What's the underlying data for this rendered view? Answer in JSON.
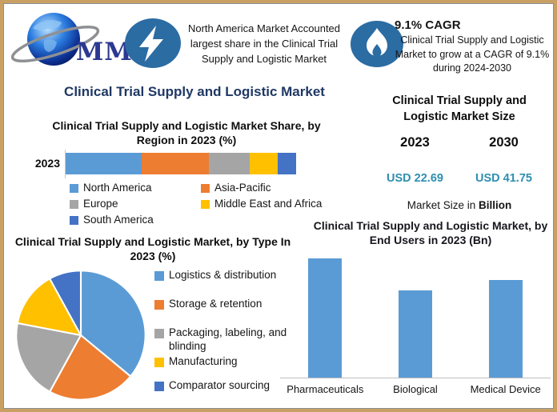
{
  "colors": {
    "frame_border": "#C9A063",
    "accent_navy": "#1F3864",
    "value_teal": "#2E8FB0",
    "badge_blue": "#2B6CA3",
    "logo_text_blue": "#2B3990",
    "bar_blue": "#5B9BD5"
  },
  "header": {
    "logo": "MMR",
    "left_note": "North America Market Accounted largest share in the Clinical Trial Supply and Logistic Market",
    "cagr_heading": "9.1% CAGR",
    "cagr_note": "Clinical Trial Supply and Logistic Market to grow at a CAGR of 9.1% during 2024-2030"
  },
  "main_title": "Clinical Trial Supply and Logistic Market",
  "market_size": {
    "title": "Clinical Trial Supply and Logistic Market Size",
    "col_2023": {
      "year": "2023",
      "value": "USD 22.69"
    },
    "col_2030": {
      "year": "2030",
      "value": "USD 41.75"
    },
    "note_prefix": "Market Size in ",
    "note_bold": "Billion"
  },
  "chart_data": [
    {
      "id": "region_share",
      "type": "bar",
      "variant": "stacked-horizontal",
      "title": "Clinical Trial Supply and Logistic Market Share, by Region in 2023 (%)",
      "categories": [
        "2023"
      ],
      "units": "%",
      "series": [
        {
          "name": "North America",
          "value": 33,
          "color": "#5B9BD5"
        },
        {
          "name": "Asia-Pacific",
          "value": 29,
          "color": "#ED7D31"
        },
        {
          "name": "Europe",
          "value": 18,
          "color": "#A5A5A5"
        },
        {
          "name": "Middle East and Africa",
          "value": 12,
          "color": "#FFC000"
        },
        {
          "name": "South America",
          "value": 8,
          "color": "#4472C4"
        }
      ],
      "legend_position": "bottom",
      "grid": false
    },
    {
      "id": "type_share",
      "type": "pie",
      "title": "Clinical Trial Supply and Logistic Market, by Type In 2023 (%)",
      "labels": [
        "Logistics & distribution",
        "Storage & retention",
        "Packaging, labeling, and blinding",
        "Manufacturing",
        "Comparator sourcing"
      ],
      "values": [
        36,
        22,
        20,
        14,
        8
      ],
      "colors": [
        "#5B9BD5",
        "#ED7D31",
        "#A5A5A5",
        "#FFC000",
        "#4472C4"
      ],
      "units": "%",
      "legend_position": "right",
      "start_angle": "top, clockwise"
    },
    {
      "id": "end_users",
      "type": "bar",
      "title": "Clinical Trial Supply and Logistic Market, by End Users in 2023 (Bn)",
      "categories": [
        "Pharmaceuticals",
        "Biological",
        "Medical Device"
      ],
      "values_relative": [
        1.0,
        0.73,
        0.82
      ],
      "color": "#5B9BD5",
      "units": "Bn",
      "grid": false,
      "legend_position": "none"
    }
  ]
}
